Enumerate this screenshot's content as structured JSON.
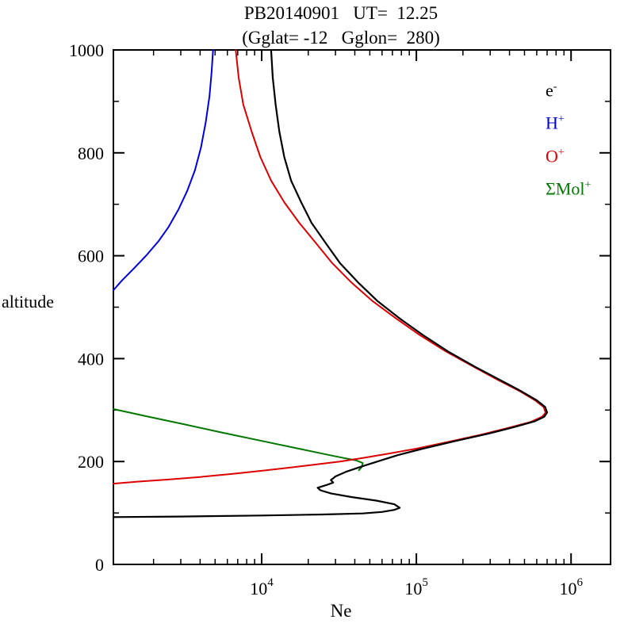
{
  "title": {
    "line1": "PB20140901   UT=  12.25",
    "line2": "(Gglat= -12   Gglon=  280)"
  },
  "axes": {
    "y_label": "altitude",
    "x_label": "Ne"
  },
  "legend": [
    {
      "name": "electron",
      "label": "e",
      "sup": "-",
      "color": "#000000"
    },
    {
      "name": "h-plus",
      "label": "H",
      "sup": "+",
      "color": "#0000dd"
    },
    {
      "name": "o-plus",
      "label": "O",
      "sup": "+",
      "color": "#dd0000"
    },
    {
      "name": "mol-plus",
      "label": "ΣMol",
      "sup": "+",
      "color": "#007700"
    }
  ],
  "chart_data": {
    "type": "line",
    "title": "PB20140901 UT= 12.25 (Gglat= -12 Gglon= 280)",
    "xlabel": "Ne",
    "ylabel": "altitude",
    "x_axis": {
      "scale": "log10",
      "min": 1100,
      "max": 1800000,
      "major_ticks": [
        10000,
        100000,
        1000000
      ],
      "tick_exponents": [
        4,
        5,
        6
      ],
      "tick_base": "10"
    },
    "y_axis": {
      "scale": "linear",
      "min": 0,
      "max": 1000,
      "major_ticks": [
        0,
        200,
        400,
        600,
        800,
        1000
      ],
      "minor_step": 100
    },
    "grid": false,
    "legend_position": "top-right-inside",
    "series": [
      {
        "name": "e-",
        "color": "#000000",
        "points": [
          [
            1100,
            92
          ],
          [
            3000,
            93
          ],
          [
            10000,
            95
          ],
          [
            25000,
            97
          ],
          [
            45000,
            99
          ],
          [
            60000,
            102
          ],
          [
            72000,
            106
          ],
          [
            78000,
            110
          ],
          [
            72000,
            117
          ],
          [
            55000,
            124
          ],
          [
            38000,
            131
          ],
          [
            28000,
            138
          ],
          [
            24000,
            144
          ],
          [
            23000,
            149
          ],
          [
            26000,
            154
          ],
          [
            29000,
            159
          ],
          [
            28000,
            164
          ],
          [
            30000,
            171
          ],
          [
            35000,
            180
          ],
          [
            44000,
            190
          ],
          [
            56000,
            200
          ],
          [
            75000,
            212
          ],
          [
            110000,
            225
          ],
          [
            180000,
            240
          ],
          [
            290000,
            254
          ],
          [
            430000,
            267
          ],
          [
            580000,
            278
          ],
          [
            670000,
            287
          ],
          [
            700000,
            295
          ],
          [
            680000,
            306
          ],
          [
            600000,
            319
          ],
          [
            480000,
            336
          ],
          [
            350000,
            358
          ],
          [
            240000,
            384
          ],
          [
            160000,
            414
          ],
          [
            110000,
            446
          ],
          [
            78000,
            478
          ],
          [
            56000,
            512
          ],
          [
            42000,
            548
          ],
          [
            32000,
            586
          ],
          [
            26000,
            624
          ],
          [
            21000,
            664
          ],
          [
            18000,
            704
          ],
          [
            15500,
            746
          ],
          [
            14000,
            792
          ],
          [
            13000,
            842
          ],
          [
            12300,
            894
          ],
          [
            11800,
            946
          ],
          [
            11500,
            1000
          ]
        ]
      },
      {
        "name": "H+",
        "color": "#0000dd",
        "points": [
          [
            1100,
            533
          ],
          [
            1250,
            552
          ],
          [
            1500,
            576
          ],
          [
            1800,
            601
          ],
          [
            2150,
            628
          ],
          [
            2500,
            656
          ],
          [
            2900,
            690
          ],
          [
            3300,
            726
          ],
          [
            3700,
            766
          ],
          [
            4050,
            810
          ],
          [
            4350,
            860
          ],
          [
            4600,
            910
          ],
          [
            4750,
            958
          ],
          [
            4850,
            1000
          ]
        ]
      },
      {
        "name": "O+",
        "color": "#dd0000",
        "points": [
          [
            1100,
            157
          ],
          [
            1600,
            161
          ],
          [
            2500,
            165
          ],
          [
            4000,
            170
          ],
          [
            6500,
            176
          ],
          [
            10000,
            182
          ],
          [
            15000,
            188
          ],
          [
            22000,
            194
          ],
          [
            32000,
            200
          ],
          [
            45000,
            207
          ],
          [
            65000,
            215
          ],
          [
            100000,
            225
          ],
          [
            160000,
            238
          ],
          [
            260000,
            252
          ],
          [
            400000,
            266
          ],
          [
            550000,
            277
          ],
          [
            650000,
            287
          ],
          [
            685000,
            295
          ],
          [
            665000,
            306
          ],
          [
            585000,
            319
          ],
          [
            470000,
            336
          ],
          [
            340000,
            358
          ],
          [
            235000,
            384
          ],
          [
            155000,
            414
          ],
          [
            105000,
            446
          ],
          [
            74000,
            478
          ],
          [
            52000,
            512
          ],
          [
            38000,
            548
          ],
          [
            28500,
            586
          ],
          [
            22500,
            624
          ],
          [
            17500,
            664
          ],
          [
            14000,
            704
          ],
          [
            11500,
            746
          ],
          [
            9800,
            792
          ],
          [
            8600,
            842
          ],
          [
            7600,
            894
          ],
          [
            7100,
            946
          ],
          [
            6800,
            1000
          ]
        ]
      },
      {
        "name": "SigmaMol+",
        "color": "#007700",
        "points": [
          [
            1100,
            302
          ],
          [
            1800,
            288
          ],
          [
            3200,
            272
          ],
          [
            5600,
            256
          ],
          [
            10000,
            240
          ],
          [
            18000,
            224
          ],
          [
            30000,
            210
          ],
          [
            41000,
            202
          ],
          [
            45000,
            197
          ],
          [
            44500,
            190
          ],
          [
            42500,
            183
          ]
        ]
      }
    ]
  }
}
